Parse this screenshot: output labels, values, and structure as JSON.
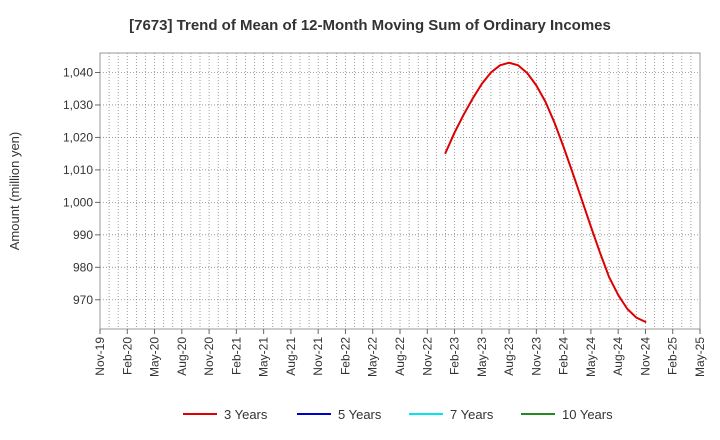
{
  "chart_data": {
    "type": "line",
    "title": "[7673]  Trend of Mean of 12-Month Moving Sum of Ordinary Incomes",
    "ylabel": "Amount (million yen)",
    "xlabel": "",
    "x_ticks": [
      "Nov-19",
      "Feb-20",
      "May-20",
      "Aug-20",
      "Nov-20",
      "Feb-21",
      "May-21",
      "Aug-21",
      "Nov-21",
      "Feb-22",
      "May-22",
      "Aug-22",
      "Nov-22",
      "Feb-23",
      "May-23",
      "Aug-23",
      "Nov-23",
      "Feb-24",
      "May-24",
      "Aug-24",
      "Nov-24",
      "Feb-25",
      "May-25"
    ],
    "x_range": [
      "2019-11",
      "2025-05"
    ],
    "y_ticks": [
      970,
      980,
      990,
      1000,
      1010,
      1020,
      1030,
      1040
    ],
    "y_tick_labels": [
      "970",
      "980",
      "990",
      "1,000",
      "1,010",
      "1,020",
      "1,030",
      "1,040"
    ],
    "ylim": [
      961,
      1046
    ],
    "grid": true,
    "legend_position": "bottom",
    "series": [
      {
        "name": "3 Years",
        "color": "#dd0000",
        "x": [
          "2023-01",
          "2023-02",
          "2023-03",
          "2023-04",
          "2023-05",
          "2023-06",
          "2023-07",
          "2023-08",
          "2023-09",
          "2023-10",
          "2023-11",
          "2023-12",
          "2024-01",
          "2024-02",
          "2024-03",
          "2024-04",
          "2024-05",
          "2024-06",
          "2024-07",
          "2024-08",
          "2024-09",
          "2024-10",
          "2024-11"
        ],
        "values": [
          1015.2,
          1021.5,
          1027.0,
          1032.0,
          1036.5,
          1040.0,
          1042.2,
          1043.0,
          1042.2,
          1039.8,
          1036.0,
          1031.0,
          1024.5,
          1017.0,
          1009.0,
          1000.8,
          992.5,
          984.5,
          977.0,
          971.5,
          967.2,
          964.5,
          963.2
        ]
      },
      {
        "name": "5 Years",
        "color": "#0000cc",
        "x": [],
        "values": []
      },
      {
        "name": "7 Years",
        "color": "#00e5ee",
        "x": [],
        "values": []
      },
      {
        "name": "10 Years",
        "color": "#228b22",
        "x": [],
        "values": []
      }
    ]
  }
}
